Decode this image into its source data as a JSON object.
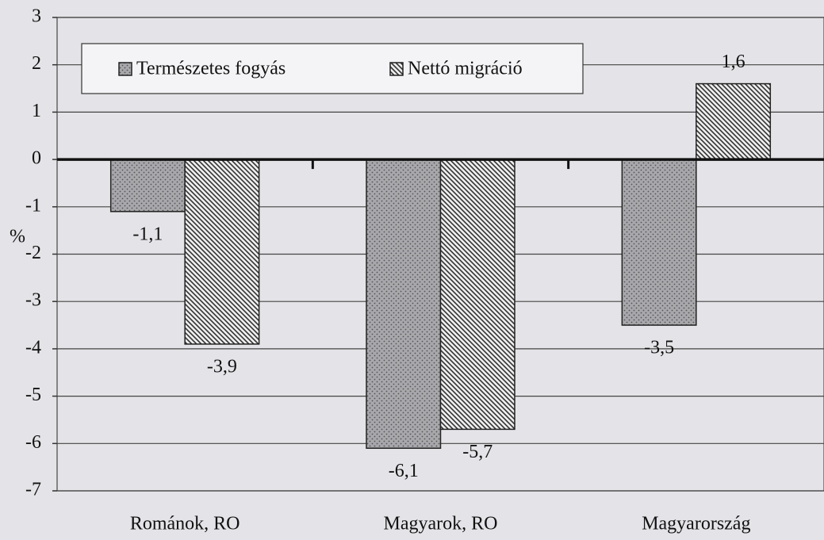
{
  "chart_data": {
    "type": "bar",
    "y_label": "%",
    "categories": [
      "Románok, RO",
      "Magyarok, RO",
      "Magyarország"
    ],
    "series": [
      {
        "name": "Természetes fogyás",
        "color": "#a8a8ac",
        "pattern": "dots",
        "values": [
          -1.1,
          -6.1,
          -3.5
        ],
        "value_labels": [
          "-1,1",
          "-6,1",
          "-3,5"
        ]
      },
      {
        "name": "Nettó migráció",
        "color": "#333333",
        "pattern": "hatch",
        "values": [
          -3.9,
          -5.7,
          1.6
        ],
        "value_labels": [
          "-3,9",
          "-5,7",
          "1,6"
        ]
      }
    ],
    "ylim": [
      -7,
      3
    ],
    "yticks": [
      -7,
      -6,
      -5,
      -4,
      -3,
      -2,
      -1,
      0,
      1,
      2,
      3
    ],
    "grid": true
  }
}
